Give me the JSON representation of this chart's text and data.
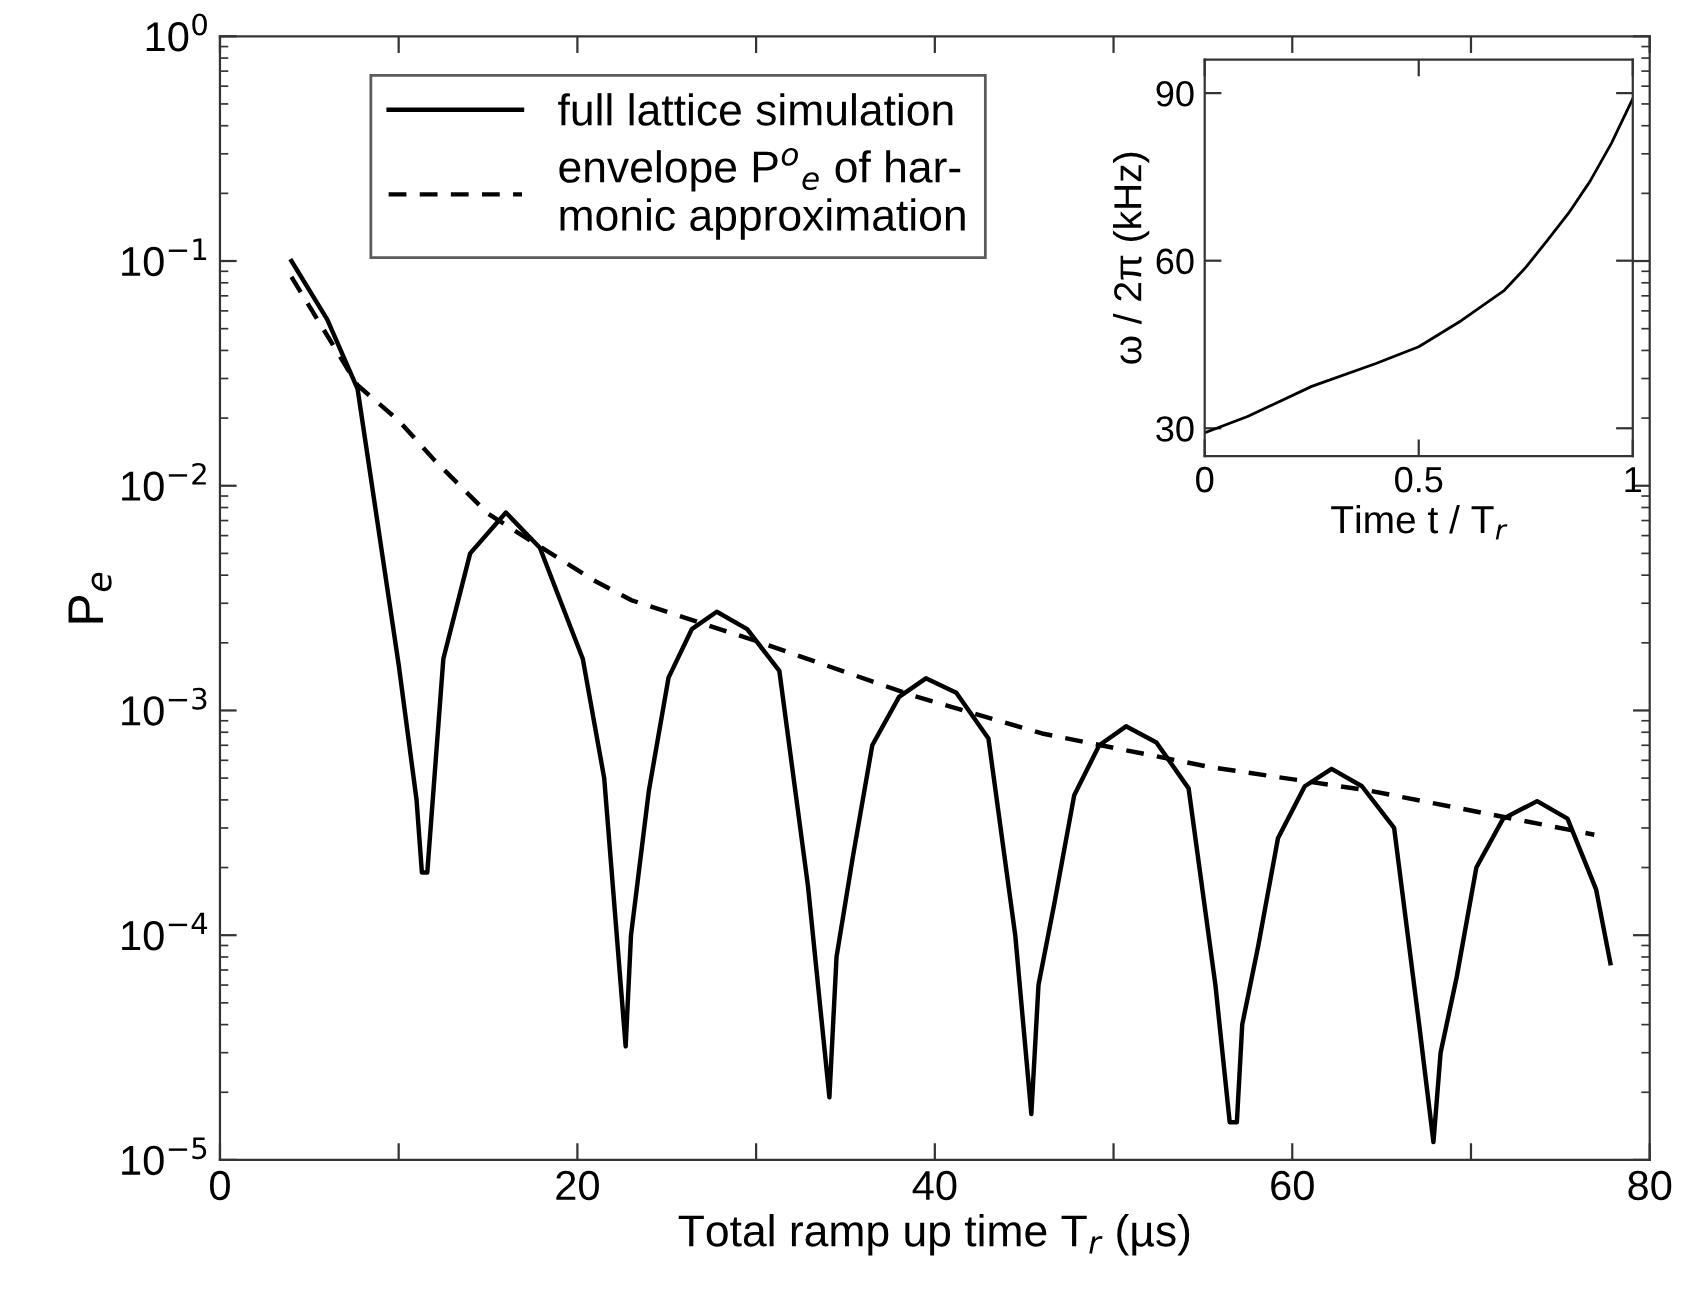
{
  "chart_data": [
    {
      "type": "line",
      "xlabel": "Total ramp up time T$_{r}$ (µs)",
      "ylabel": "P$_{e}$",
      "log": "y",
      "legend": "top left",
      "xlim": [
        0,
        80
      ],
      "xticks": [
        0,
        {
          "value": 10,
          "label": null
        },
        20,
        {
          "value": 30,
          "label": null
        },
        40,
        {
          "value": 50,
          "label": null
        },
        60,
        {
          "value": 70,
          "label": null
        },
        80
      ],
      "ylim": [
        1e-05,
        1
      ],
      "yticks": [
        {
          "value": 1e-05,
          "label": "10$^{−5}$"
        },
        {
          "value": 0.0001,
          "label": "10$^{−4}$"
        },
        {
          "value": 0.001,
          "label": "10$^{−3}$"
        },
        {
          "value": 0.01,
          "label": "10$^{−2}$"
        },
        {
          "value": 0.1,
          "label": "10$^{−1}$"
        },
        {
          "value": 1,
          "label": "10$^{0}$"
        }
      ],
      "series": [
        {
          "name": "full lattice simulation",
          "color": "#000000",
          "line_style": "solid",
          "x": [
            4,
            6,
            7.7,
            10,
            11,
            11.3,
            11.6,
            12.5,
            14,
            16,
            17.9,
            20.3,
            21.5,
            22.7,
            23.0,
            24.0,
            25.1,
            26.4,
            27.8,
            29.5,
            31.3,
            32.9,
            34.1,
            34.5,
            35.4,
            36.5,
            38.0,
            39.5,
            41.2,
            43.0,
            44.5,
            45.4,
            45.8,
            46.7,
            47.8,
            49.2,
            50.7,
            52.4,
            54.2,
            55.7,
            56.5,
            56.9,
            57.2,
            58.1,
            59.2,
            60.7,
            62.2,
            63.9,
            65.7,
            67.1,
            67.9,
            68.3,
            69.2,
            70.3,
            71.8,
            73.7,
            75.4,
            77.0,
            77.8
          ],
          "values": [
            0.1,
            0.055,
            0.027,
            0.0016,
            0.0004,
            0.00019,
            0.00019,
            0.0017,
            0.005,
            0.0076,
            0.0053,
            0.0017,
            0.0005,
            3.2e-05,
            0.0001,
            0.00044,
            0.0014,
            0.0023,
            0.00275,
            0.0023,
            0.0015,
            0.000166,
            1.9e-05,
            8e-05,
            0.00022,
            0.0007,
            0.00115,
            0.00139,
            0.0012,
            0.00075,
            0.0001,
            1.6e-05,
            6e-05,
            0.00014,
            0.00042,
            0.0007,
            0.00085,
            0.00072,
            0.00045,
            6e-05,
            1.47e-05,
            1.47e-05,
            4e-05,
            9e-05,
            0.00027,
            0.00046,
            0.00055,
            0.00046,
            0.0003,
            4e-05,
            1.2e-05,
            3e-05,
            6.5e-05,
            0.0002,
            0.00033,
            0.000395,
            0.00033,
            0.00016,
            7.5e-05
          ]
        },
        {
          "name": "envelope P$^{o}$$_{e}$ of har-\nmonic approximation",
          "color": "#000000",
          "line_style": "dashed",
          "x": [
            4,
            7.7,
            10,
            12,
            15,
            20.9,
            23,
            30.3,
            38.7,
            46,
            55.4,
            64.3,
            76.9
          ],
          "values": [
            0.085,
            0.028,
            0.0195,
            0.013,
            0.0075,
            0.0038,
            0.0031,
            0.002,
            0.00117,
            0.00079,
            0.00056,
            0.00044,
            0.00028
          ]
        }
      ]
    },
    {
      "type": "line",
      "xlabel": "Time t / T$_{r}$",
      "ylabel": "ω / 2π (kHz)",
      "xlim": [
        0,
        1
      ],
      "xticks": [
        0,
        0.5,
        1
      ],
      "ylim": [
        25,
        96
      ],
      "yticks": [
        30,
        60,
        90
      ],
      "series": [
        {
          "color": "#000000",
          "line_style": "solid",
          "x": [
            0,
            0.1,
            0.25,
            0.4,
            0.5,
            0.6,
            0.7,
            0.75,
            0.8,
            0.85,
            0.9,
            0.95,
            1
          ],
          "values": [
            29.2,
            32.1,
            37.5,
            41.6,
            44.6,
            49.3,
            54.7,
            58.8,
            63.6,
            68.5,
            74.2,
            81,
            89
          ]
        }
      ]
    }
  ]
}
